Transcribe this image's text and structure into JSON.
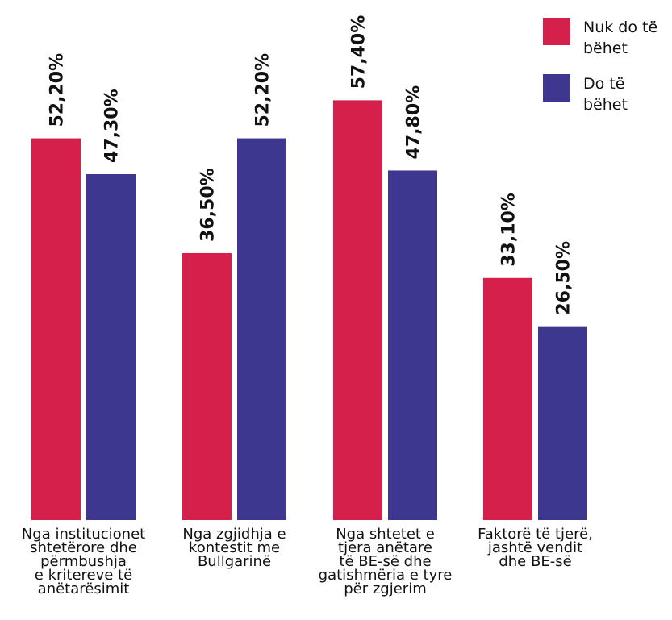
{
  "chart_data": {
    "type": "bar",
    "title": "",
    "xlabel": "",
    "ylabel": "",
    "ylim": [
      0,
      60
    ],
    "grid": false,
    "legend_position": "top-right",
    "categories": [
      [
        "Nga institucionet",
        "shtetërore dhe",
        "përmbushja",
        "e kritereve të",
        "anëtarësimit"
      ],
      [
        "Nga zgjidhja e",
        "kontestit me",
        "Bullgarinë"
      ],
      [
        "Nga shtetet e",
        "tjera anëtare",
        "të BE-së dhe",
        "gatishmëria e tyre",
        "për zgjerim"
      ],
      [
        "Faktorë të tjerë,",
        "jashtë vendit",
        "dhe BE-së"
      ]
    ],
    "series": [
      {
        "name": "Nuk do të bëhet",
        "legend_lines": [
          "Nuk do të",
          "bëhet"
        ],
        "color": "#d4204a",
        "values": [
          52.2,
          36.5,
          57.4,
          33.1
        ],
        "labels": [
          "52,20%",
          "36,50%",
          "57,40%",
          "33,10%"
        ]
      },
      {
        "name": "Do të bëhet",
        "legend_lines": [
          "Do të",
          "bëhet"
        ],
        "color": "#3d3790",
        "values": [
          47.3,
          52.2,
          47.8,
          26.5
        ],
        "labels": [
          "47,30%",
          "52,20%",
          "47,80%",
          "26,50%"
        ]
      }
    ]
  }
}
